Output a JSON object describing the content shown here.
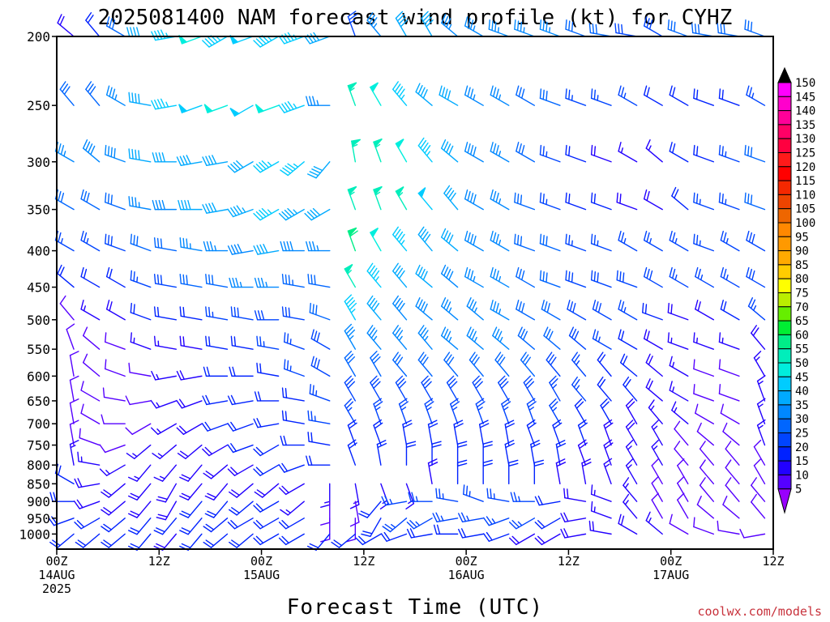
{
  "chart_data": {
    "type": "wind-barb-profile",
    "title": "2025081400 NAM forecast wind profile (kt) for CYHZ",
    "xlabel": "Forecast Time (UTC)",
    "ylabel": "",
    "credit": "coolwx.com/models",
    "y_axis": {
      "scale": "log-pressure",
      "range": [
        1050,
        200
      ],
      "ticks": [
        "200",
        "250",
        "300",
        "350",
        "400",
        "450",
        "500",
        "550",
        "600",
        "650",
        "700",
        "750",
        "800",
        "850",
        "900",
        "950",
        "1000"
      ]
    },
    "x_axis": {
      "range": [
        0,
        84
      ],
      "ticks": [
        {
          "hour": 0,
          "line1": "00Z",
          "line2": "14AUG",
          "line3": "2025"
        },
        {
          "hour": 12,
          "line1": "12Z",
          "line2": "",
          "line3": ""
        },
        {
          "hour": 24,
          "line1": "00Z",
          "line2": "15AUG",
          "line3": ""
        },
        {
          "hour": 36,
          "line1": "12Z",
          "line2": "",
          "line3": ""
        },
        {
          "hour": 48,
          "line1": "00Z",
          "line2": "16AUG",
          "line3": ""
        },
        {
          "hour": 60,
          "line1": "12Z",
          "line2": "",
          "line3": ""
        },
        {
          "hour": 72,
          "line1": "00Z",
          "line2": "17AUG",
          "line3": ""
        },
        {
          "hour": 84,
          "line1": "12Z",
          "line2": "",
          "line3": ""
        }
      ]
    },
    "hours": [
      2,
      5,
      8,
      11,
      14,
      17,
      20,
      23,
      26,
      29,
      32,
      35,
      38,
      41,
      44,
      47,
      50,
      53,
      56,
      59,
      62,
      65,
      68,
      71,
      74,
      77,
      80,
      83
    ],
    "levels": [
      200,
      250,
      300,
      350,
      400,
      450,
      500,
      550,
      600,
      650,
      700,
      750,
      800,
      850,
      900,
      950,
      1000
    ],
    "wind_dir_deg": [
      [
        310,
        320,
        300,
        270,
        260,
        250,
        240,
        250,
        240,
        250,
        250,
        340,
        320,
        330,
        330,
        310,
        300,
        290,
        290,
        290,
        290,
        280,
        280,
        300,
        290,
        280,
        280,
        290
      ],
      [
        320,
        320,
        300,
        280,
        260,
        250,
        250,
        240,
        250,
        250,
        270,
        340,
        330,
        320,
        310,
        300,
        300,
        300,
        300,
        290,
        290,
        290,
        300,
        300,
        300,
        290,
        290,
        300
      ],
      [
        300,
        310,
        290,
        280,
        270,
        260,
        260,
        240,
        240,
        230,
        220,
        350,
        340,
        330,
        320,
        310,
        300,
        300,
        300,
        290,
        290,
        290,
        300,
        310,
        300,
        290,
        290,
        290
      ],
      [
        300,
        300,
        290,
        280,
        270,
        270,
        260,
        250,
        240,
        240,
        240,
        340,
        340,
        330,
        320,
        320,
        300,
        300,
        290,
        290,
        290,
        290,
        290,
        300,
        310,
        290,
        290,
        290
      ],
      [
        300,
        300,
        290,
        290,
        280,
        280,
        270,
        260,
        260,
        270,
        270,
        340,
        330,
        320,
        320,
        310,
        300,
        300,
        290,
        290,
        290,
        290,
        300,
        300,
        300,
        290,
        300,
        300
      ],
      [
        310,
        300,
        300,
        290,
        280,
        280,
        280,
        270,
        270,
        280,
        280,
        330,
        320,
        320,
        310,
        310,
        300,
        300,
        300,
        290,
        290,
        290,
        290,
        300,
        300,
        300,
        300,
        300
      ],
      [
        320,
        300,
        300,
        290,
        280,
        280,
        280,
        280,
        270,
        280,
        290,
        330,
        320,
        320,
        310,
        310,
        310,
        300,
        300,
        300,
        300,
        300,
        300,
        290,
        290,
        300,
        300,
        310
      ],
      [
        340,
        310,
        290,
        290,
        280,
        280,
        280,
        280,
        280,
        290,
        300,
        330,
        320,
        320,
        320,
        310,
        310,
        310,
        310,
        310,
        310,
        300,
        300,
        300,
        290,
        290,
        290,
        320
      ],
      [
        350,
        310,
        290,
        280,
        260,
        260,
        270,
        270,
        280,
        290,
        300,
        330,
        330,
        320,
        320,
        320,
        320,
        320,
        320,
        320,
        320,
        320,
        310,
        310,
        300,
        290,
        290,
        330
      ],
      [
        350,
        300,
        280,
        260,
        250,
        250,
        260,
        260,
        270,
        280,
        290,
        330,
        330,
        330,
        330,
        330,
        330,
        330,
        330,
        330,
        320,
        320,
        320,
        310,
        300,
        290,
        290,
        340
      ],
      [
        350,
        300,
        270,
        240,
        240,
        240,
        250,
        250,
        260,
        280,
        280,
        330,
        340,
        340,
        340,
        340,
        340,
        340,
        340,
        330,
        330,
        330,
        330,
        320,
        310,
        300,
        300,
        340
      ],
      [
        350,
        290,
        250,
        230,
        230,
        230,
        240,
        250,
        240,
        270,
        280,
        340,
        340,
        350,
        350,
        350,
        350,
        350,
        340,
        340,
        340,
        340,
        330,
        330,
        320,
        310,
        310,
        340
      ],
      [
        350,
        280,
        240,
        220,
        220,
        220,
        230,
        240,
        240,
        250,
        270,
        340,
        350,
        0,
        0,
        0,
        0,
        350,
        350,
        350,
        340,
        340,
        330,
        330,
        320,
        320,
        320,
        330
      ],
      [
        300,
        260,
        230,
        220,
        210,
        220,
        220,
        230,
        230,
        240,
        180,
        170,
        160,
        160,
        350,
        0,
        0,
        0,
        0,
        350,
        350,
        340,
        330,
        330,
        330,
        320,
        320,
        330
      ],
      [
        270,
        250,
        230,
        220,
        210,
        220,
        220,
        230,
        240,
        230,
        180,
        170,
        220,
        260,
        270,
        280,
        290,
        280,
        270,
        260,
        280,
        290,
        320,
        330,
        330,
        320,
        320,
        320
      ],
      [
        250,
        240,
        230,
        220,
        220,
        220,
        230,
        240,
        240,
        240,
        180,
        180,
        210,
        230,
        240,
        260,
        260,
        250,
        240,
        240,
        260,
        290,
        320,
        330,
        330,
        310,
        310,
        320
      ],
      [
        230,
        230,
        230,
        220,
        220,
        220,
        230,
        230,
        240,
        240,
        220,
        230,
        240,
        250,
        260,
        270,
        260,
        250,
        240,
        240,
        260,
        280,
        300,
        310,
        300,
        290,
        280,
        260
      ]
    ],
    "wind_speed_kt": [
      [
        18,
        20,
        30,
        40,
        45,
        50,
        45,
        48,
        45,
        45,
        40,
        25,
        35,
        40,
        40,
        35,
        35,
        35,
        35,
        35,
        30,
        30,
        28,
        28,
        30,
        30,
        30,
        32
      ],
      [
        30,
        32,
        35,
        40,
        45,
        48,
        50,
        48,
        50,
        45,
        35,
        55,
        50,
        45,
        40,
        40,
        35,
        35,
        30,
        30,
        25,
        25,
        25,
        22,
        20,
        22,
        22,
        25
      ],
      [
        35,
        38,
        38,
        40,
        40,
        40,
        40,
        42,
        45,
        45,
        40,
        55,
        55,
        50,
        45,
        42,
        38,
        35,
        30,
        25,
        20,
        18,
        15,
        15,
        20,
        22,
        25,
        30
      ],
      [
        30,
        30,
        32,
        35,
        38,
        40,
        42,
        44,
        46,
        44,
        42,
        55,
        55,
        55,
        48,
        42,
        38,
        35,
        30,
        25,
        20,
        20,
        18,
        18,
        22,
        25,
        25,
        30
      ],
      [
        25,
        25,
        28,
        30,
        32,
        35,
        35,
        38,
        40,
        38,
        35,
        60,
        50,
        45,
        42,
        40,
        38,
        35,
        32,
        30,
        25,
        25,
        25,
        25,
        25,
        25,
        25,
        28
      ],
      [
        20,
        20,
        22,
        25,
        28,
        30,
        32,
        35,
        35,
        33,
        30,
        55,
        45,
        40,
        40,
        38,
        35,
        35,
        32,
        30,
        28,
        28,
        28,
        28,
        25,
        25,
        25,
        28
      ],
      [
        12,
        15,
        18,
        20,
        22,
        22,
        25,
        28,
        28,
        28,
        30,
        45,
        40,
        38,
        38,
        35,
        35,
        35,
        32,
        30,
        28,
        28,
        25,
        20,
        18,
        18,
        20,
        25
      ],
      [
        10,
        12,
        12,
        15,
        15,
        18,
        20,
        22,
        25,
        25,
        28,
        35,
        35,
        35,
        35,
        35,
        35,
        35,
        32,
        30,
        28,
        25,
        22,
        18,
        15,
        15,
        15,
        18
      ],
      [
        10,
        10,
        12,
        12,
        15,
        18,
        20,
        22,
        22,
        25,
        28,
        30,
        30,
        30,
        30,
        30,
        30,
        30,
        30,
        28,
        25,
        22,
        20,
        18,
        15,
        12,
        12,
        15
      ],
      [
        10,
        10,
        12,
        12,
        15,
        18,
        20,
        22,
        22,
        22,
        25,
        28,
        28,
        28,
        28,
        28,
        28,
        28,
        28,
        26,
        25,
        22,
        20,
        18,
        15,
        12,
        12,
        15
      ],
      [
        10,
        12,
        12,
        12,
        15,
        18,
        20,
        20,
        20,
        22,
        25,
        25,
        25,
        25,
        25,
        25,
        25,
        25,
        25,
        25,
        22,
        20,
        18,
        15,
        15,
        12,
        12,
        15
      ],
      [
        12,
        12,
        12,
        15,
        15,
        18,
        18,
        20,
        20,
        22,
        22,
        22,
        22,
        22,
        22,
        22,
        22,
        22,
        22,
        22,
        20,
        18,
        18,
        15,
        12,
        12,
        12,
        15
      ],
      [
        15,
        15,
        15,
        15,
        15,
        18,
        18,
        18,
        20,
        20,
        20,
        20,
        20,
        20,
        20,
        20,
        20,
        20,
        20,
        20,
        18,
        18,
        15,
        15,
        12,
        10,
        10,
        12
      ],
      [
        20,
        18,
        18,
        18,
        18,
        18,
        18,
        18,
        18,
        18,
        15,
        15,
        15,
        15,
        18,
        20,
        20,
        20,
        20,
        18,
        18,
        15,
        15,
        12,
        10,
        10,
        10,
        12
      ],
      [
        20,
        18,
        18,
        18,
        18,
        20,
        20,
        20,
        20,
        15,
        12,
        12,
        20,
        25,
        25,
        25,
        25,
        25,
        25,
        20,
        18,
        15,
        15,
        12,
        10,
        10,
        10,
        12
      ],
      [
        20,
        20,
        20,
        20,
        20,
        20,
        20,
        20,
        22,
        22,
        12,
        12,
        20,
        25,
        25,
        25,
        25,
        25,
        25,
        20,
        18,
        15,
        15,
        12,
        10,
        10,
        10,
        12
      ],
      [
        20,
        20,
        20,
        20,
        18,
        20,
        22,
        22,
        22,
        22,
        20,
        20,
        20,
        20,
        20,
        20,
        20,
        20,
        18,
        18,
        18,
        18,
        18,
        15,
        12,
        10,
        10,
        12
      ]
    ],
    "colorbar": {
      "labels": [
        150,
        145,
        140,
        135,
        130,
        125,
        120,
        115,
        110,
        105,
        100,
        95,
        90,
        85,
        80,
        75,
        70,
        65,
        60,
        55,
        50,
        45,
        40,
        35,
        30,
        25,
        20,
        15,
        10,
        5
      ],
      "colors": [
        "#ff00ff",
        "#ff00cc",
        "#ff0099",
        "#ff0066",
        "#ff0040",
        "#ff1a1a",
        "#ff0000",
        "#f52800",
        "#ee4400",
        "#ee6600",
        "#ff8800",
        "#ff9900",
        "#ffaa00",
        "#ffcc00",
        "#ffff00",
        "#bbee00",
        "#66ee00",
        "#00ee33",
        "#00ee88",
        "#00eebb",
        "#00eedd",
        "#00ccff",
        "#00aaff",
        "#0088ff",
        "#0066ff",
        "#0044ff",
        "#0022ff",
        "#2200ff",
        "#5500ff",
        "#9900ff"
      ]
    },
    "ground": {
      "color": "#a0522d"
    }
  }
}
